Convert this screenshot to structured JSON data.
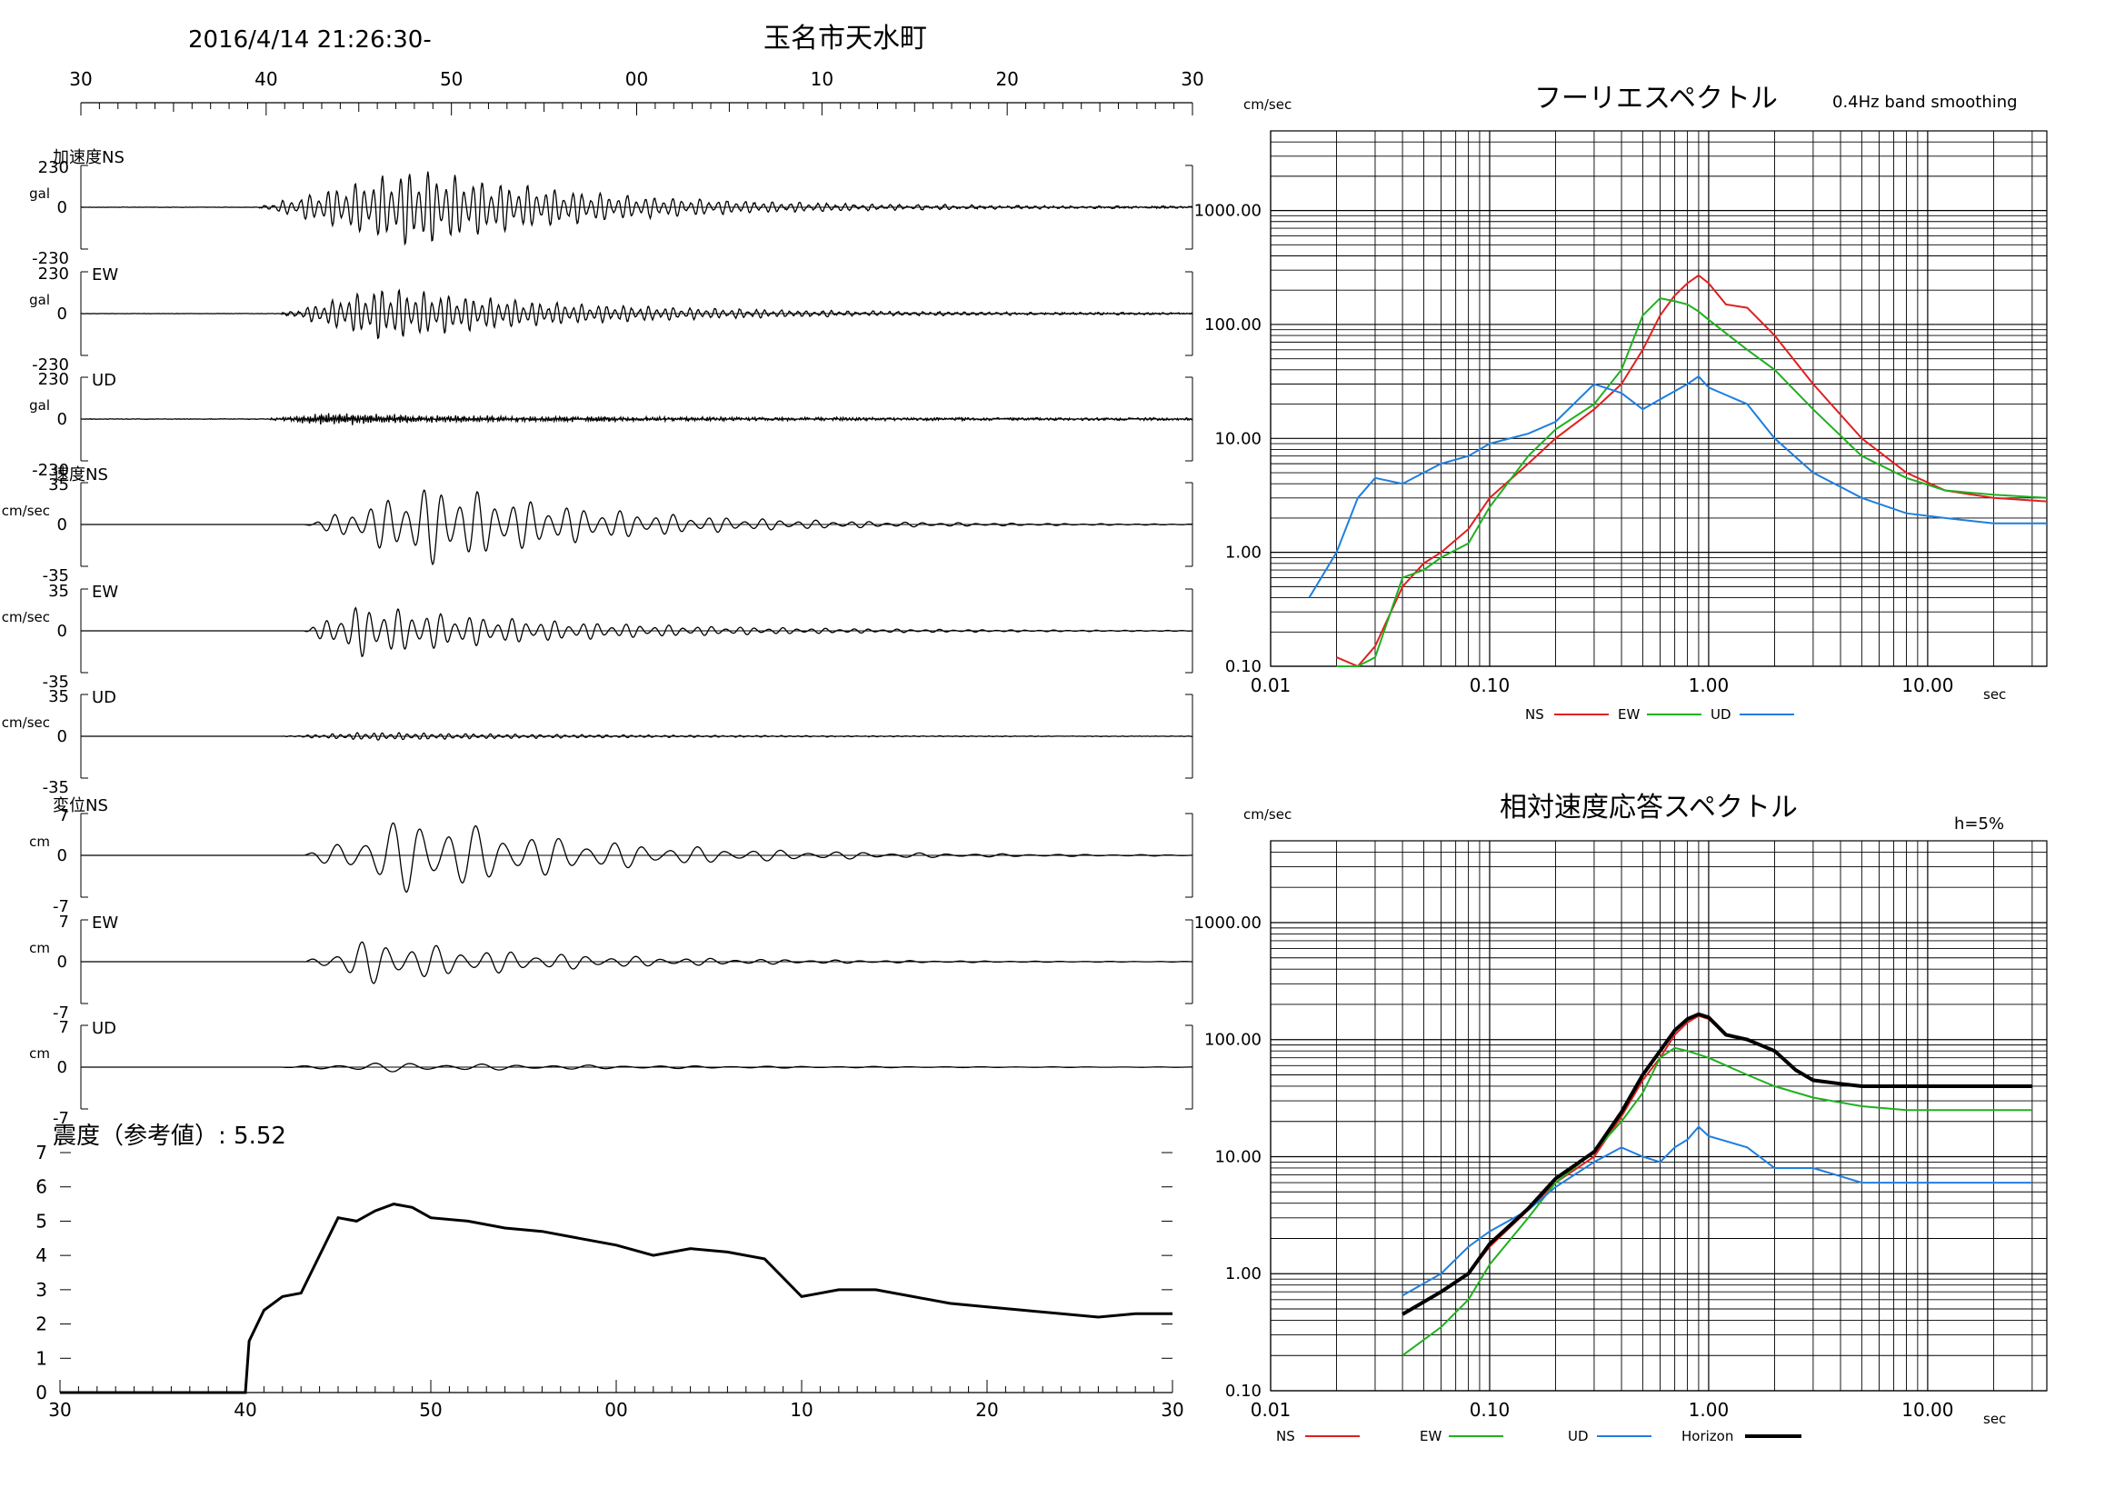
{
  "header": {
    "datetime": "2016/4/14 21:26:30-",
    "station": "玉名市天水町"
  },
  "time_axis_ticks": [
    "30",
    "40",
    "50",
    "00",
    "10",
    "20",
    "30"
  ],
  "waveforms": {
    "groups": [
      {
        "title": "加速度NS",
        "unit": "gal",
        "channels": [
          {
            "label": "",
            "ymax": "230",
            "ymin": "-230"
          },
          {
            "label": "EW",
            "ymax": "230",
            "ymin": "-230"
          },
          {
            "label": "UD",
            "ymax": "230",
            "ymin": "-230"
          }
        ]
      },
      {
        "title": "速度NS",
        "unit": "cm/sec",
        "channels": [
          {
            "label": "",
            "ymax": "35",
            "ymin": "-35"
          },
          {
            "label": "EW",
            "ymax": "35",
            "ymin": "-35"
          },
          {
            "label": "UD",
            "ymax": "35",
            "ymin": "-35"
          }
        ]
      },
      {
        "title": "変位NS",
        "unit": "cm",
        "channels": [
          {
            "label": "",
            "ymax": "7",
            "ymin": "-7"
          },
          {
            "label": "EW",
            "ymax": "7",
            "ymin": "-7"
          },
          {
            "label": "UD",
            "ymax": "7",
            "ymin": "-7"
          }
        ]
      }
    ],
    "zero_label": "0"
  },
  "intensity": {
    "title": "震度（参考値）: 5.52",
    "y_ticks": [
      "0",
      "1",
      "2",
      "3",
      "4",
      "5",
      "6",
      "7"
    ],
    "x_ticks": [
      "30",
      "40",
      "50",
      "00",
      "10",
      "20",
      "30"
    ]
  },
  "fourier": {
    "title": "フーリエスペクトル",
    "subtitle": "0.4Hz band smoothing",
    "yunit": "cm/sec",
    "xunit": "sec",
    "y_ticks": [
      "0.10",
      "1.00",
      "10.00",
      "100.00",
      "1000.00"
    ],
    "x_ticks": [
      "0.01",
      "0.10",
      "1.00",
      "10.00"
    ],
    "legend": [
      {
        "name": "NS",
        "color": "#e02020"
      },
      {
        "name": "EW",
        "color": "#20b020"
      },
      {
        "name": "UD",
        "color": "#1e7fe0"
      }
    ]
  },
  "response": {
    "title": "相対速度応答スペクトル",
    "subtitle": "h=5%",
    "yunit": "cm/sec",
    "xunit": "sec",
    "y_ticks": [
      "0.10",
      "1.00",
      "10.00",
      "100.00",
      "1000.00"
    ],
    "x_ticks": [
      "0.01",
      "0.10",
      "1.00",
      "10.00"
    ],
    "legend": [
      {
        "name": "NS",
        "color": "#e02020"
      },
      {
        "name": "EW",
        "color": "#20b020"
      },
      {
        "name": "UD",
        "color": "#1e7fe0"
      },
      {
        "name": "Horizon",
        "color": "#000000"
      }
    ]
  },
  "chart_data": [
    {
      "type": "line",
      "title": "震度（参考値）: 5.52",
      "xlabel": "",
      "ylabel": "",
      "ylim": [
        0,
        7
      ],
      "x_tick_labels": [
        "30",
        "40",
        "50",
        "00",
        "10",
        "20",
        "30"
      ],
      "series": [
        {
          "x": [
            0,
            10,
            10.2,
            11,
            12,
            13,
            14,
            15,
            16,
            17,
            18,
            19,
            20,
            22,
            24,
            26,
            28,
            30,
            32,
            34,
            36,
            38,
            40,
            42,
            44,
            46,
            48,
            50,
            52,
            54,
            56,
            58,
            60
          ],
          "values": [
            0,
            0,
            1.5,
            2.4,
            2.8,
            2.9,
            4.0,
            5.1,
            5.0,
            5.3,
            5.5,
            5.4,
            5.1,
            5.0,
            4.8,
            4.7,
            4.5,
            4.3,
            4.0,
            4.2,
            4.1,
            3.9,
            2.8,
            3.0,
            3.0,
            2.8,
            2.6,
            2.5,
            2.4,
            2.3,
            2.2,
            2.3,
            2.3
          ]
        }
      ]
    },
    {
      "type": "line",
      "title": "フーリエスペクトル",
      "xlabel": "sec",
      "ylabel": "cm/sec",
      "xscale": "log",
      "yscale": "log",
      "xlim": [
        0.01,
        35
      ],
      "ylim": [
        0.1,
        5000
      ],
      "series": [
        {
          "name": "NS",
          "x": [
            0.02,
            0.025,
            0.03,
            0.04,
            0.05,
            0.06,
            0.08,
            0.1,
            0.15,
            0.2,
            0.3,
            0.4,
            0.5,
            0.6,
            0.7,
            0.8,
            0.9,
            1.0,
            1.2,
            1.5,
            2,
            3,
            5,
            8,
            12,
            20,
            35
          ],
          "values": [
            0.12,
            0.1,
            0.15,
            0.5,
            0.8,
            1.0,
            1.6,
            3.0,
            6.0,
            10,
            18,
            30,
            60,
            120,
            180,
            230,
            270,
            230,
            150,
            140,
            80,
            30,
            10,
            5,
            3.5,
            3.0,
            2.8
          ]
        },
        {
          "name": "EW",
          "x": [
            0.02,
            0.025,
            0.03,
            0.04,
            0.05,
            0.06,
            0.08,
            0.1,
            0.15,
            0.2,
            0.3,
            0.4,
            0.5,
            0.6,
            0.7,
            0.8,
            0.9,
            1.0,
            1.5,
            2,
            3,
            5,
            8,
            12,
            20,
            35
          ],
          "values": [
            0.1,
            0.1,
            0.12,
            0.6,
            0.7,
            0.9,
            1.2,
            2.5,
            7,
            12,
            20,
            40,
            120,
            170,
            160,
            150,
            130,
            110,
            60,
            40,
            18,
            7,
            4.5,
            3.5,
            3.2,
            3.0
          ]
        },
        {
          "name": "UD",
          "x": [
            0.015,
            0.02,
            0.025,
            0.03,
            0.04,
            0.05,
            0.06,
            0.08,
            0.1,
            0.15,
            0.2,
            0.3,
            0.4,
            0.5,
            0.6,
            0.8,
            0.9,
            1.0,
            1.5,
            2,
            3,
            5,
            8,
            12,
            20,
            35
          ],
          "values": [
            0.4,
            1.0,
            3.0,
            4.5,
            4.0,
            5.0,
            6.0,
            7.0,
            9.0,
            11,
            14,
            30,
            25,
            18,
            22,
            30,
            35,
            28,
            20,
            10,
            5,
            3,
            2.2,
            2.0,
            1.8,
            1.8
          ]
        }
      ]
    },
    {
      "type": "line",
      "title": "相対速度応答スペクトル",
      "xlabel": "sec",
      "ylabel": "cm/sec",
      "xscale": "log",
      "yscale": "log",
      "xlim": [
        0.01,
        35
      ],
      "ylim": [
        0.1,
        5000
      ],
      "series": [
        {
          "name": "NS",
          "x": [
            0.04,
            0.06,
            0.08,
            0.1,
            0.15,
            0.2,
            0.3,
            0.4,
            0.5,
            0.6,
            0.7,
            0.8,
            0.9,
            1.0,
            1.2,
            1.5,
            2,
            2.5,
            3,
            4,
            5,
            8,
            12,
            20,
            30
          ],
          "values": [
            0.45,
            0.7,
            1.0,
            1.7,
            3.5,
            6.0,
            10,
            22,
            45,
            70,
            110,
            140,
            160,
            150,
            110,
            100,
            80,
            55,
            45,
            42,
            40,
            40,
            40,
            40,
            40
          ]
        },
        {
          "name": "EW",
          "x": [
            0.04,
            0.06,
            0.08,
            0.1,
            0.15,
            0.2,
            0.3,
            0.4,
            0.5,
            0.6,
            0.7,
            0.8,
            1.0,
            1.5,
            2,
            3,
            5,
            8,
            12,
            20,
            30
          ],
          "values": [
            0.2,
            0.35,
            0.6,
            1.2,
            3.0,
            6.0,
            11,
            20,
            35,
            70,
            85,
            80,
            70,
            50,
            40,
            32,
            27,
            25,
            25,
            25,
            25
          ]
        },
        {
          "name": "UD",
          "x": [
            0.04,
            0.06,
            0.08,
            0.1,
            0.15,
            0.2,
            0.3,
            0.4,
            0.5,
            0.6,
            0.7,
            0.8,
            0.9,
            1.0,
            1.5,
            2,
            3,
            5,
            8,
            12,
            20,
            30
          ],
          "values": [
            0.65,
            1.0,
            1.7,
            2.3,
            3.5,
            5.5,
            9.0,
            12,
            10,
            9,
            12,
            14,
            18,
            15,
            12,
            8,
            8,
            6,
            6,
            6,
            6,
            6
          ]
        },
        {
          "name": "Horizon",
          "x": [
            0.04,
            0.06,
            0.08,
            0.1,
            0.15,
            0.2,
            0.3,
            0.4,
            0.5,
            0.6,
            0.7,
            0.8,
            0.9,
            1.0,
            1.2,
            1.5,
            2,
            2.5,
            3,
            4,
            5,
            8,
            12,
            20,
            30
          ],
          "values": [
            0.45,
            0.7,
            1.0,
            1.8,
            3.6,
            6.5,
            11,
            24,
            50,
            80,
            120,
            150,
            165,
            155,
            110,
            100,
            80,
            55,
            45,
            42,
            40,
            40,
            40,
            40,
            40
          ]
        }
      ]
    }
  ]
}
